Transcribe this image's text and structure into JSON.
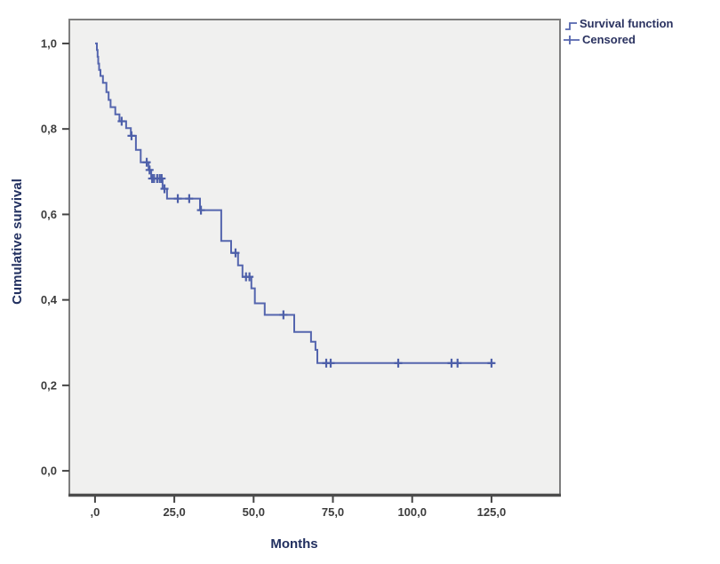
{
  "figure": {
    "legend": [
      {
        "label": "Survival function",
        "symbol": "step-line-glyph"
      },
      {
        "label": "Censored",
        "symbol": "plus-glyph"
      }
    ],
    "colors": {
      "line": "#5465ae",
      "censor_mark": "#4d5fa9",
      "plot_background": "#f0f0ef",
      "frame": "#7e7e7e",
      "frame_bottom": "#4c4c4c",
      "tick": "#444444",
      "tick_label": "#3d3d3d",
      "axis_title": "#223060",
      "legend_text": "#2a3260",
      "page_background": "#ffffff"
    }
  },
  "chart_data": {
    "type": "line",
    "subtype": "kaplan-meier-step",
    "title": "",
    "xlabel": "Months",
    "ylabel": "Cumulative survival",
    "legend_position": "top-right-outside",
    "grid": false,
    "xlim": [
      -8.1,
      146.6
    ],
    "ylim": [
      -0.058,
      1.056
    ],
    "x_ticks": [
      {
        "value": 0,
        "label": ",0"
      },
      {
        "value": 25,
        "label": "25,0"
      },
      {
        "value": 50,
        "label": "50,0"
      },
      {
        "value": 75,
        "label": "75,0"
      },
      {
        "value": 100,
        "label": "100,0"
      },
      {
        "value": 125,
        "label": "125,0"
      }
    ],
    "y_ticks": [
      {
        "value": 0.0,
        "label": "0,0"
      },
      {
        "value": 0.2,
        "label": "0,2"
      },
      {
        "value": 0.4,
        "label": "0,4"
      },
      {
        "value": 0.6,
        "label": "0,6"
      },
      {
        "value": 0.8,
        "label": "0,8"
      },
      {
        "value": 1.0,
        "label": "1,0"
      }
    ],
    "series": [
      {
        "name": "Survival function",
        "type": "step",
        "points": [
          [
            0.3,
            1.0
          ],
          [
            0.6,
            0.985
          ],
          [
            0.8,
            0.969
          ],
          [
            1.0,
            0.953
          ],
          [
            1.3,
            0.938
          ],
          [
            1.7,
            0.924
          ],
          [
            2.5,
            0.908
          ],
          [
            3.6,
            0.886
          ],
          [
            4.3,
            0.868
          ],
          [
            4.9,
            0.851
          ],
          [
            6.4,
            0.834
          ],
          [
            7.7,
            0.818
          ],
          [
            9.8,
            0.802
          ],
          [
            11.3,
            0.784
          ],
          [
            12.9,
            0.751
          ],
          [
            14.4,
            0.722
          ],
          [
            16.9,
            0.704
          ],
          [
            17.7,
            0.684
          ],
          [
            21.3,
            0.66
          ],
          [
            22.7,
            0.637
          ],
          [
            33.1,
            0.61
          ],
          [
            39.8,
            0.538
          ],
          [
            42.9,
            0.51
          ],
          [
            45.1,
            0.481
          ],
          [
            46.5,
            0.454
          ],
          [
            49.3,
            0.427
          ],
          [
            50.4,
            0.392
          ],
          [
            53.5,
            0.365
          ],
          [
            62.8,
            0.325
          ],
          [
            68.1,
            0.302
          ],
          [
            69.5,
            0.283
          ],
          [
            70.1,
            0.252
          ],
          [
            125.6,
            0.252
          ]
        ]
      },
      {
        "name": "Censored",
        "type": "markers",
        "points": [
          [
            8.4,
            0.818
          ],
          [
            11.5,
            0.784
          ],
          [
            16.3,
            0.722
          ],
          [
            17.2,
            0.704
          ],
          [
            18.0,
            0.684
          ],
          [
            18.6,
            0.684
          ],
          [
            19.6,
            0.684
          ],
          [
            20.4,
            0.684
          ],
          [
            21.0,
            0.684
          ],
          [
            21.9,
            0.66
          ],
          [
            26.1,
            0.637
          ],
          [
            29.7,
            0.637
          ],
          [
            33.4,
            0.61
          ],
          [
            44.3,
            0.51
          ],
          [
            47.6,
            0.454
          ],
          [
            48.7,
            0.454
          ],
          [
            59.4,
            0.365
          ],
          [
            72.9,
            0.252
          ],
          [
            74.3,
            0.252
          ],
          [
            95.6,
            0.252
          ],
          [
            112.4,
            0.252
          ],
          [
            114.3,
            0.252
          ],
          [
            125.0,
            0.252
          ]
        ]
      }
    ]
  }
}
